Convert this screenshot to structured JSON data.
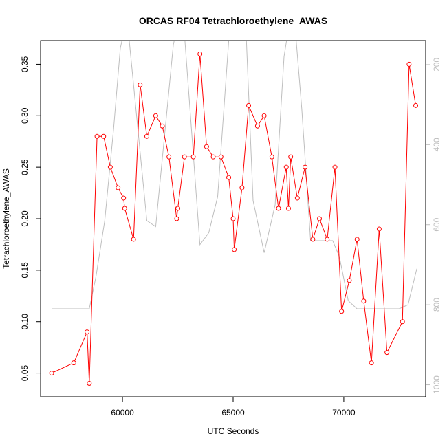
{
  "chart_data": {
    "type": "line",
    "title": "ORCAS RF04 Tetrachloroethylene_AWAS",
    "xlabel": "UTC Seconds",
    "ylabel": "Tetrachloroethylene_AWAS",
    "xlim": [
      56300,
      73700
    ],
    "ylim": [
      0.027,
      0.373
    ],
    "xticks": [
      60000,
      65000,
      70000
    ],
    "yticks": [
      0.05,
      0.1,
      0.15,
      0.2,
      0.25,
      0.3,
      0.35
    ],
    "y2lim": [
      1030,
      140
    ],
    "y2ticks": [
      200,
      400,
      600,
      800,
      1000
    ],
    "grid": false,
    "legend": "none",
    "series": [
      {
        "color": "#ff0000",
        "marker": "open-circle",
        "axis": "left",
        "x": [
          56800,
          57800,
          58400,
          58500,
          58850,
          59150,
          59450,
          59800,
          60050,
          60100,
          60500,
          60800,
          61100,
          61500,
          61800,
          62100,
          62450,
          62500,
          62800,
          63200,
          63500,
          63800,
          64100,
          64450,
          64800,
          65000,
          65050,
          65400,
          65700,
          66100,
          66400,
          66750,
          67050,
          67400,
          67500,
          67600,
          67900,
          68250,
          68600,
          68900,
          69250,
          69600,
          69900,
          70250,
          70600,
          70900,
          71250,
          71600,
          71950,
          72650,
          72950,
          73250
        ],
        "y": [
          0.05,
          0.06,
          0.09,
          0.04,
          0.28,
          0.28,
          0.25,
          0.23,
          0.22,
          0.21,
          0.18,
          0.33,
          0.28,
          0.3,
          0.29,
          0.26,
          0.2,
          0.21,
          0.26,
          0.26,
          0.36,
          0.27,
          0.26,
          0.26,
          0.24,
          0.2,
          0.17,
          0.23,
          0.31,
          0.29,
          0.3,
          0.26,
          0.21,
          0.25,
          0.21,
          0.26,
          0.22,
          0.25,
          0.18,
          0.2,
          0.18,
          0.25,
          0.11,
          0.14,
          0.18,
          0.12,
          0.06,
          0.19,
          0.07,
          0.1,
          0.35,
          0.31
        ]
      },
      {
        "color": "#bebebe",
        "marker": "none",
        "axis": "right",
        "x": [
          56800,
          58500,
          58800,
          59200,
          59600,
          59900,
          60200,
          61100,
          61500,
          62300,
          62700,
          63100,
          63500,
          63900,
          64300,
          64800,
          65300,
          65600,
          65900,
          66400,
          66900,
          67300,
          67700,
          68100,
          68500,
          69000,
          69500,
          69800,
          70200,
          70600,
          71000,
          71500,
          72000,
          72500,
          72900,
          73300
        ],
        "y": [
          810,
          810,
          730,
          590,
          360,
          160,
          80,
          590,
          605,
          150,
          50,
          350,
          650,
          620,
          530,
          140,
          20,
          140,
          540,
          670,
          550,
          180,
          40,
          310,
          640,
          640,
          640,
          680,
          790,
          810,
          810,
          810,
          810,
          810,
          800,
          710
        ]
      }
    ]
  }
}
